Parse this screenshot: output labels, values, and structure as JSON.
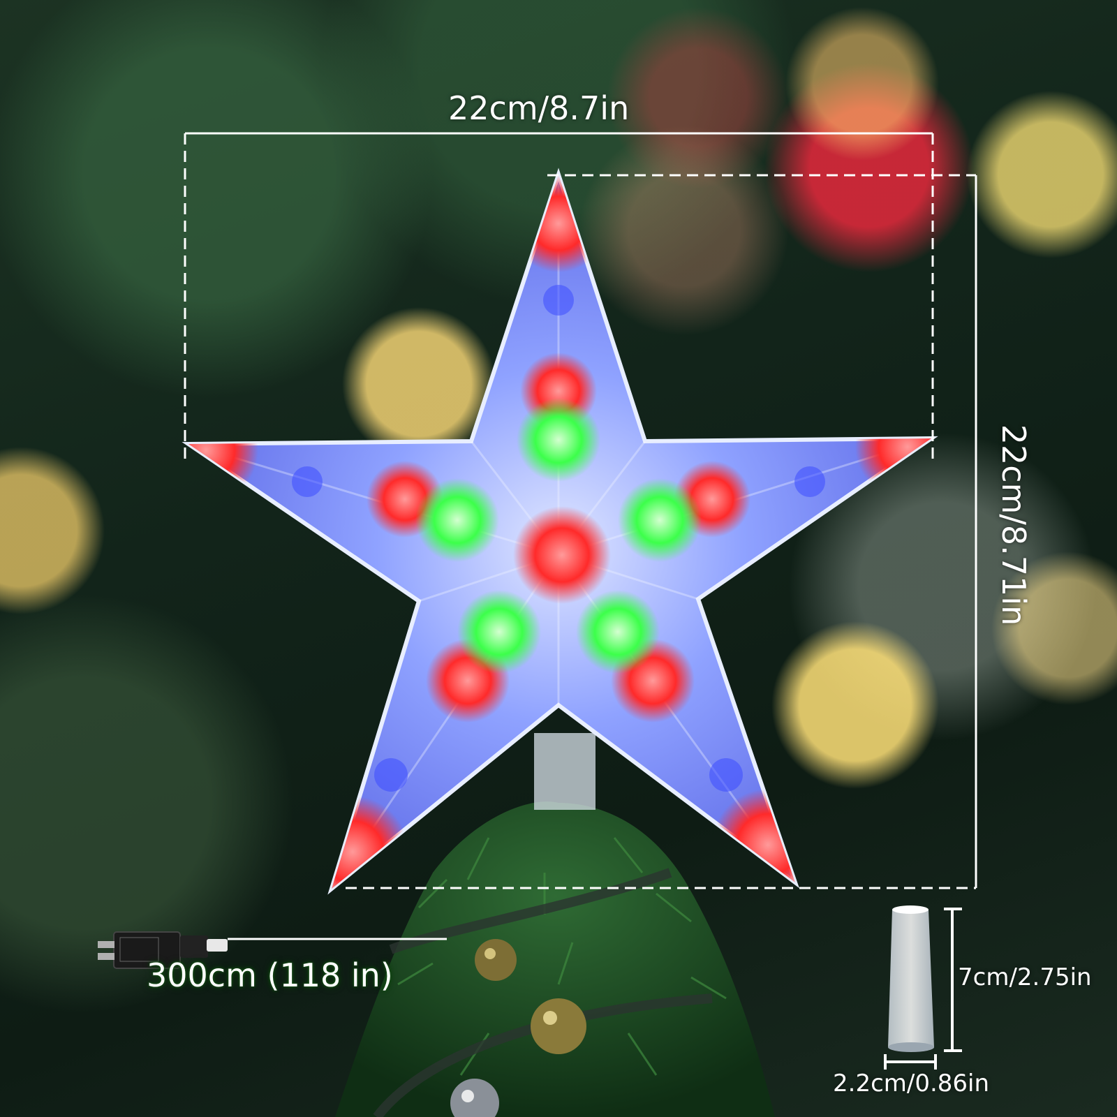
{
  "dimensions": {
    "width_label": "22cm/8.7in",
    "height_label": "22cm/8.71in",
    "cord_label": "300cm (118 in)",
    "holder_height_label": "7cm/2.75in",
    "holder_width_label": "2.2cm/0.86in"
  },
  "colors": {
    "star_red": "#ff2a2a",
    "star_green": "#3cff4a",
    "star_blue": "#5a6cff",
    "guide_lines": "#ffffff"
  }
}
